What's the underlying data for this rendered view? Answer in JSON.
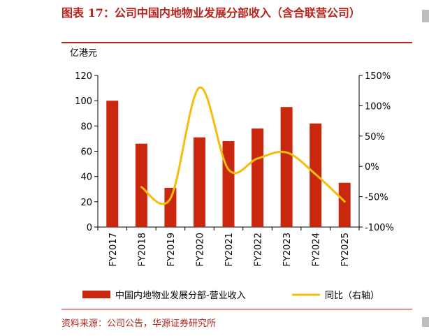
{
  "header": {
    "title": "图表 17：公司中国内地物业发展分部收入（含合联营公司）"
  },
  "footer": {
    "source": "资料来源：公司公告，华源证券研究所"
  },
  "chart_data": {
    "type": "bar",
    "title": "图表 17：公司中国内地物业发展分部收入（含合联营公司）",
    "ylabel": "亿港元",
    "categories": [
      "FY2017",
      "FY2018",
      "FY2019",
      "FY2020",
      "FY2021",
      "FY2022",
      "FY2023",
      "FY2024",
      "FY2025"
    ],
    "series": [
      {
        "name": "中国内地物业发展分部-营业收入",
        "type": "bar",
        "axis": "left",
        "color": "#c9280f",
        "values": [
          100,
          66,
          31,
          71,
          68,
          78,
          95,
          82,
          35
        ]
      },
      {
        "name": "同比（右轴）",
        "type": "line",
        "axis": "right",
        "color": "#f5bd0c",
        "values": [
          null,
          -34,
          -53,
          130,
          -5,
          13,
          23,
          -13,
          -58
        ]
      }
    ],
    "ylim": [
      0,
      120
    ],
    "yticks": [
      0,
      20,
      40,
      60,
      80,
      100,
      120
    ],
    "y2lim": [
      -100,
      150
    ],
    "y2ticks": [
      "-100%",
      "-50%",
      "0%",
      "50%",
      "100%",
      "150%"
    ],
    "grid": false,
    "legend": "bottom"
  }
}
